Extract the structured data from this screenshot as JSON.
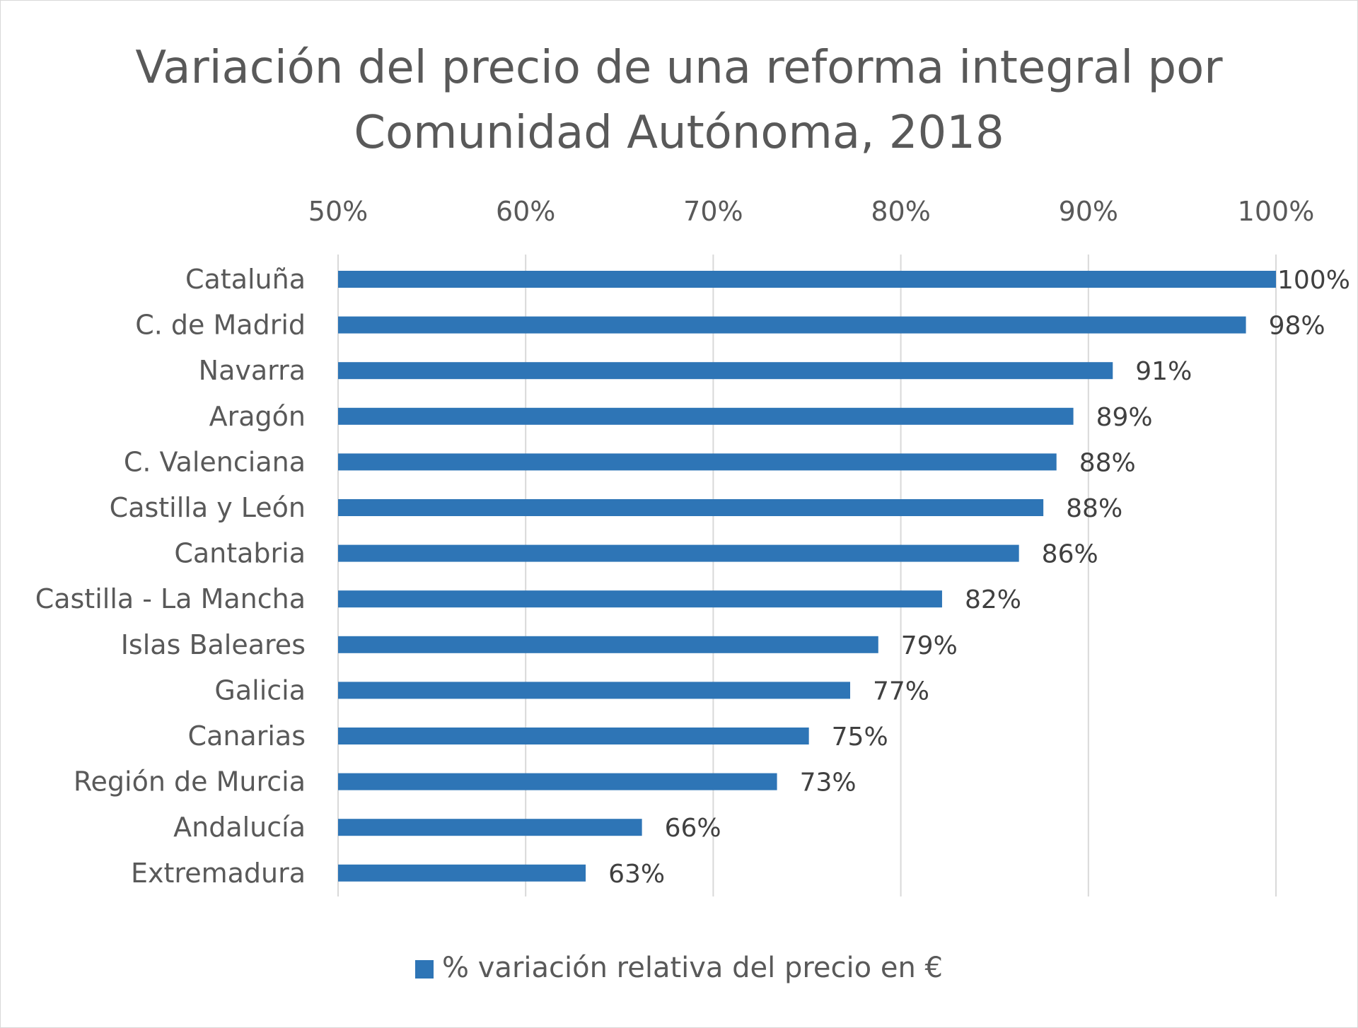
{
  "chart_data": {
    "type": "bar",
    "orientation": "horizontal",
    "title": "Variación del precio de una reforma integral por Comunidad Autónoma, 2018",
    "categories": [
      "Cataluña",
      "C. de Madrid",
      "Navarra",
      "Aragón",
      "C. Valenciana",
      "Castilla y León",
      "Cantabria",
      "Castilla - La Mancha",
      "Islas Baleares",
      "Galicia",
      "Canarias",
      "Región de Murcia",
      "Andalucía",
      "Extremadura"
    ],
    "series": [
      {
        "name": "% variación relativa del precio en €",
        "values": [
          100,
          98.4,
          91.3,
          89.2,
          88.3,
          87.6,
          86.3,
          82.2,
          78.8,
          77.3,
          75.1,
          73.4,
          66.2,
          63.2
        ],
        "data_labels": [
          "100%",
          "98%",
          "91%",
          "89%",
          "88%",
          "88%",
          "86%",
          "82%",
          "79%",
          "77%",
          "75%",
          "73%",
          "66%",
          "63%"
        ]
      }
    ],
    "xlim": [
      50,
      100
    ],
    "x_ticks": [
      50,
      60,
      70,
      80,
      90,
      100
    ],
    "x_tick_labels": [
      "50%",
      "60%",
      "70%",
      "80%",
      "90%",
      "100%"
    ],
    "axis_position": "top",
    "grid": true,
    "legend_position": "bottom",
    "bar_color": "#2E75B6"
  }
}
